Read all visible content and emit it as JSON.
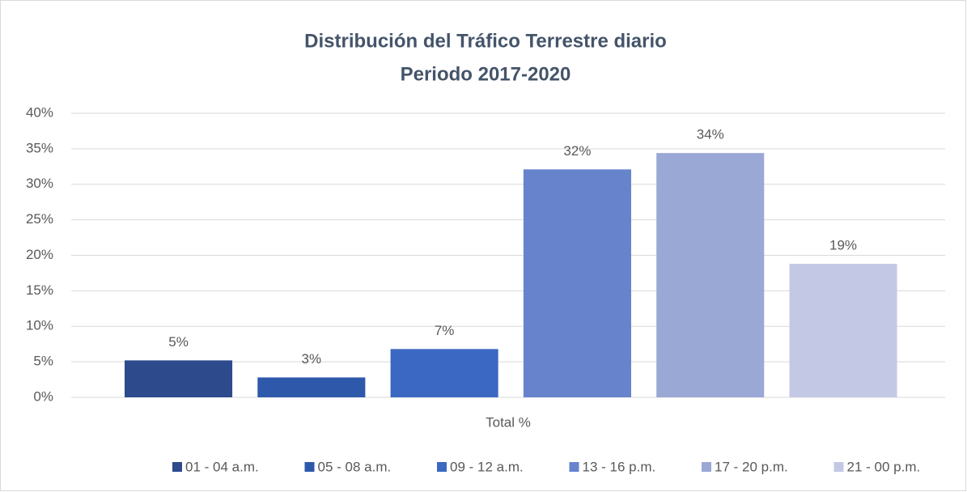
{
  "chart_data": {
    "type": "bar",
    "title": "Distribución del Tráfico Terrestre diario",
    "subtitle": "Periodo 2017-2020",
    "categories": [
      "Total %"
    ],
    "series": [
      {
        "name": "01 - 04 a.m.",
        "color": "#2c4a8c",
        "values": [
          5.2
        ],
        "value_labels": [
          "5%"
        ]
      },
      {
        "name": "05 - 08 a.m.",
        "color": "#2e59ab",
        "values": [
          2.8
        ],
        "value_labels": [
          "3%"
        ]
      },
      {
        "name": "09 - 12 a.m.",
        "color": "#3b68c2",
        "values": [
          6.8
        ],
        "value_labels": [
          "7%"
        ]
      },
      {
        "name": "13 - 16 p.m.",
        "color": "#6683cc",
        "values": [
          32.1
        ],
        "value_labels": [
          "32%"
        ]
      },
      {
        "name": "17 - 20 p.m.",
        "color": "#9aa8d6",
        "values": [
          34.4
        ],
        "value_labels": [
          "34%"
        ]
      },
      {
        "name": "21 - 00 p.m.",
        "color": "#c3c9e4",
        "values": [
          18.8
        ],
        "value_labels": [
          "19%"
        ]
      }
    ],
    "ylim": [
      0,
      40
    ],
    "yticks": [
      {
        "value": 0,
        "label": "0%"
      },
      {
        "value": 5,
        "label": "5%"
      },
      {
        "value": 10,
        "label": "10%"
      },
      {
        "value": 15,
        "label": "15%"
      },
      {
        "value": 20,
        "label": "20%"
      },
      {
        "value": 25,
        "label": "25%"
      },
      {
        "value": 30,
        "label": "30%"
      },
      {
        "value": 35,
        "label": "35%"
      },
      {
        "value": 40,
        "label": "40%"
      }
    ],
    "grid": true,
    "legend": "bottom"
  }
}
